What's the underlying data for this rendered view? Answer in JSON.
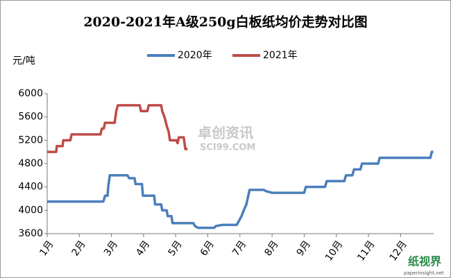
{
  "chart_data": {
    "type": "line",
    "title": "2020-2021年A级250g白板纸均价走势对比图",
    "y_label": "元/吨",
    "watermarks": [
      "卓创资讯",
      "SCI99.COM",
      "纸视界",
      "paperinsight.net"
    ],
    "xlim": [
      1,
      13.03
    ],
    "xticks": [
      {
        "value": 1,
        "label": "1月"
      },
      {
        "value": 2,
        "label": "2月"
      },
      {
        "value": 3,
        "label": "3月"
      },
      {
        "value": 4,
        "label": "4月"
      },
      {
        "value": 5,
        "label": "5月"
      },
      {
        "value": 6,
        "label": "6月"
      },
      {
        "value": 7,
        "label": "7月"
      },
      {
        "value": 8,
        "label": "8月"
      },
      {
        "value": 9,
        "label": "9月"
      },
      {
        "value": 10,
        "label": "10月"
      },
      {
        "value": 11,
        "label": "11月"
      },
      {
        "value": 12,
        "label": "12月"
      }
    ],
    "ylim": [
      3600,
      6000
    ],
    "yticks": [
      3600,
      4000,
      4400,
      4800,
      5200,
      5600,
      6000
    ],
    "legend": "top",
    "series": [
      {
        "name": "2020年",
        "color": "#4a7ebb",
        "x": [
          1.0,
          2.75,
          2.8,
          2.88,
          2.9,
          2.95,
          3.5,
          3.55,
          3.72,
          3.75,
          3.95,
          3.98,
          4.33,
          4.36,
          4.55,
          4.58,
          4.72,
          4.75,
          4.87,
          4.9,
          5.55,
          5.6,
          5.7,
          6.2,
          6.25,
          6.45,
          6.9,
          6.95,
          7.05,
          7.12,
          7.2,
          7.3,
          7.75,
          7.8,
          8.0,
          9.0,
          9.05,
          9.65,
          9.7,
          10.25,
          10.3,
          10.5,
          10.55,
          10.75,
          10.8,
          11.3,
          11.35,
          12.93,
          12.97,
          13.02
        ],
        "values": [
          4150,
          4150,
          4250,
          4250,
          4400,
          4600,
          4600,
          4550,
          4550,
          4450,
          4450,
          4250,
          4250,
          4100,
          4100,
          4000,
          4000,
          3900,
          3900,
          3780,
          3780,
          3730,
          3700,
          3700,
          3730,
          3750,
          3750,
          3800,
          3900,
          4000,
          4100,
          4350,
          4350,
          4330,
          4300,
          4300,
          4400,
          4400,
          4500,
          4500,
          4600,
          4600,
          4700,
          4700,
          4800,
          4800,
          4900,
          4900,
          5000,
          5000
        ]
      },
      {
        "name": "2021年",
        "color": "#be4b48",
        "x": [
          1.0,
          1.28,
          1.3,
          1.48,
          1.5,
          1.72,
          1.76,
          2.66,
          2.7,
          2.76,
          2.8,
          3.1,
          3.15,
          3.2,
          3.88,
          3.92,
          4.12,
          4.16,
          4.55,
          4.58,
          4.65,
          4.72,
          4.78,
          4.82,
          5.02,
          5.06,
          5.1,
          5.25,
          5.3,
          5.37
        ],
        "values": [
          5000,
          5000,
          5100,
          5100,
          5200,
          5200,
          5300,
          5300,
          5400,
          5400,
          5500,
          5500,
          5700,
          5800,
          5800,
          5700,
          5700,
          5800,
          5800,
          5700,
          5600,
          5450,
          5350,
          5200,
          5200,
          5150,
          5250,
          5250,
          5050,
          5050
        ]
      }
    ]
  }
}
